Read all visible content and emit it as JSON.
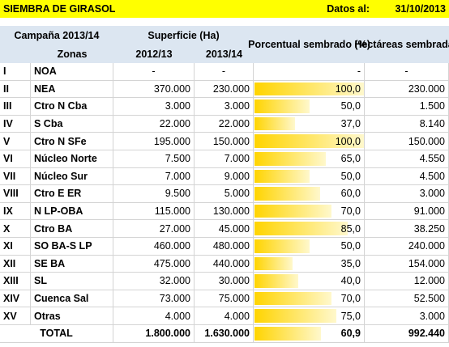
{
  "title": "SIEMBRA DE GIRASOL",
  "date_label": "Datos al:",
  "date": "31/10/2013",
  "header": {
    "campaign": "Campaña 2013/14",
    "surface": "Superficie (Ha)",
    "percent": "Porcentual sembrado (%)",
    "hectares": "Hectáreas sembradas",
    "zones": "Zonas",
    "year1": "2012/13",
    "year2": "2013/14"
  },
  "rows": [
    [
      "I",
      "NOA",
      "-",
      "-",
      "-",
      "-"
    ],
    [
      "II",
      "NEA",
      "370.000",
      "230.000",
      "100,0",
      "230.000"
    ],
    [
      "III",
      "Ctro N Cba",
      "3.000",
      "3.000",
      "50,0",
      "1.500"
    ],
    [
      "IV",
      "S Cba",
      "22.000",
      "22.000",
      "37,0",
      "8.140"
    ],
    [
      "V",
      "Ctro N SFe",
      "195.000",
      "150.000",
      "100,0",
      "150.000"
    ],
    [
      "VI",
      "Núcleo Norte",
      "7.500",
      "7.000",
      "65,0",
      "4.550"
    ],
    [
      "VII",
      "Núcleo Sur",
      "7.000",
      "9.000",
      "50,0",
      "4.500"
    ],
    [
      "VIII",
      "Ctro E ER",
      "9.500",
      "5.000",
      "60,0",
      "3.000"
    ],
    [
      "IX",
      "N LP-OBA",
      "115.000",
      "130.000",
      "70,0",
      "91.000"
    ],
    [
      "X",
      "Ctro BA",
      "27.000",
      "45.000",
      "85,0",
      "38.250"
    ],
    [
      "XI",
      "SO BA-S LP",
      "460.000",
      "480.000",
      "50,0",
      "240.000"
    ],
    [
      "XII",
      "SE BA",
      "475.000",
      "440.000",
      "35,0",
      "154.000"
    ],
    [
      "XIII",
      "SL",
      "32.000",
      "30.000",
      "40,0",
      "12.000"
    ],
    [
      "XIV",
      "Cuenca Sal",
      "73.000",
      "75.000",
      "70,0",
      "52.500"
    ],
    [
      "XV",
      "Otras",
      "4.000",
      "4.000",
      "75,0",
      "3.000"
    ]
  ],
  "total": [
    "TOTAL",
    "1.800.000",
    "1.630.000",
    "60,9",
    "992.440"
  ]
}
